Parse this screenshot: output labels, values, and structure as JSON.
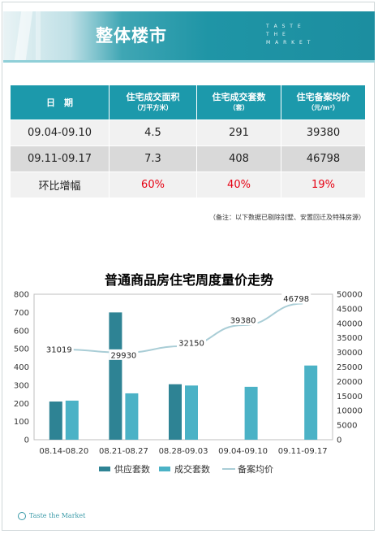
{
  "header": {
    "title": "整体楼市",
    "tagline": [
      "T A S T E",
      "T H E",
      "M A R K E T"
    ]
  },
  "table": {
    "headers": [
      {
        "main": "日　期",
        "sub": ""
      },
      {
        "main": "住宅成交面积",
        "sub": "（万平方米）"
      },
      {
        "main": "住宅成交套数",
        "sub": "（套）"
      },
      {
        "main": "住宅备案均价",
        "sub": "（元/m²）"
      }
    ],
    "rows": [
      [
        "09.04-09.10",
        "4.5",
        "291",
        "39380"
      ],
      [
        "09.11-09.17",
        "7.3",
        "408",
        "46798"
      ],
      [
        "环比增幅",
        "60%",
        "40%",
        "19%"
      ]
    ]
  },
  "note": "（备注：以下数据已剔除别墅、安置回迁及特殊房源）",
  "chart_data": {
    "type": "bar",
    "title": "普通商品房住宅周度量价走势",
    "categories": [
      "08.14-08.20",
      "08.21-08.27",
      "08.28-09.03",
      "09.04-09.10",
      "09.11-09.17"
    ],
    "series": [
      {
        "name": "供应套数",
        "type": "bar",
        "axis": "left",
        "color": "#2e8394",
        "values": [
          210,
          700,
          305,
          0,
          0
        ]
      },
      {
        "name": "成交套数",
        "type": "bar",
        "axis": "left",
        "color": "#4bb2c6",
        "values": [
          215,
          255,
          298,
          291,
          408
        ]
      },
      {
        "name": "备案均价",
        "type": "line",
        "axis": "right",
        "color": "#a9cdd6",
        "values": [
          31019,
          29930,
          32150,
          39380,
          46798
        ]
      }
    ],
    "y_left": {
      "min": 0,
      "max": 800,
      "ticks": [
        0,
        100,
        200,
        300,
        400,
        500,
        600,
        700,
        800
      ]
    },
    "y_right": {
      "min": 0,
      "max": 50000,
      "ticks": [
        0,
        5000,
        10000,
        15000,
        20000,
        25000,
        30000,
        35000,
        40000,
        45000,
        50000
      ]
    },
    "line_labels": [
      "31019",
      "29930",
      "32150",
      "39380",
      "46798"
    ],
    "legend_position": "bottom",
    "grid": false
  },
  "footer": {
    "logo_text": "Taste the Market"
  }
}
